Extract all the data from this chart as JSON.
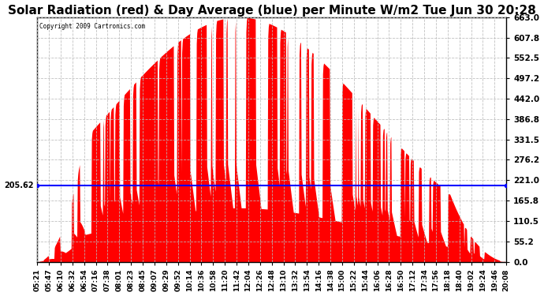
{
  "title": "Solar Radiation (red) & Day Average (blue) per Minute W/m2 Tue Jun 30 20:28",
  "copyright": "Copyright 2009 Cartronics.com",
  "y_min": 0.0,
  "y_max": 663.0,
  "y_ticks": [
    0.0,
    55.2,
    110.5,
    165.8,
    221.0,
    276.2,
    331.5,
    386.8,
    442.0,
    497.2,
    552.5,
    607.8,
    663.0
  ],
  "y_tick_labels": [
    "0.0",
    "55.2",
    "110.5",
    "165.8",
    "221.0",
    "276.2",
    "331.5",
    "386.8",
    "442.0",
    "497.2",
    "552.5",
    "607.8",
    "663.0"
  ],
  "day_average": 205.62,
  "background_color": "#ffffff",
  "fill_color": "#ff0000",
  "line_color": "#0000ff",
  "grid_color": "#bbbbbb",
  "title_fontsize": 11,
  "x_tick_labels": [
    "05:21",
    "05:47",
    "06:10",
    "06:32",
    "06:54",
    "07:16",
    "07:38",
    "08:01",
    "08:23",
    "08:45",
    "09:07",
    "09:29",
    "09:52",
    "10:14",
    "10:36",
    "10:58",
    "11:20",
    "11:42",
    "12:04",
    "12:26",
    "12:48",
    "13:10",
    "13:32",
    "13:54",
    "14:16",
    "14:38",
    "15:00",
    "15:22",
    "15:44",
    "16:06",
    "16:28",
    "16:50",
    "17:12",
    "17:34",
    "17:56",
    "18:18",
    "18:40",
    "19:02",
    "19:24",
    "19:46",
    "20:08"
  ]
}
